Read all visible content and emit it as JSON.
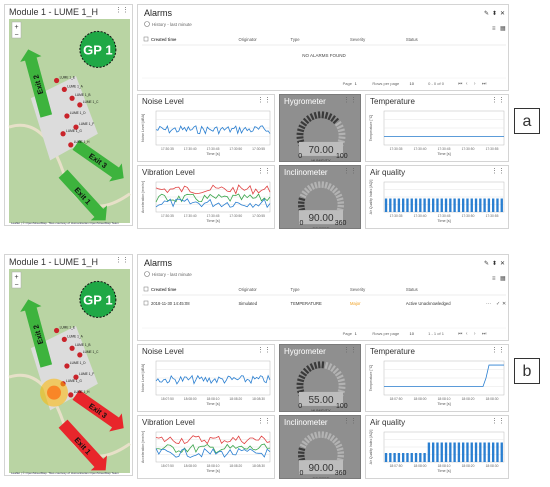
{
  "a": {
    "map": {
      "title": "Module 1 - LUME 1_H",
      "gp": "GP 1",
      "exits": [
        "Exit 2",
        "Exit 3",
        "Exit 1"
      ],
      "markers": [
        "LUME 1_E",
        "LUME 1_A",
        "LUME 1_B",
        "LUME 1_C",
        "LUME 1_D",
        "LUME 1_F",
        "LUME 1_G",
        "LUME 1_H"
      ],
      "attribution": "Leaflet | © OpenStreetMap. Tiles courtesy of Humanitarian OpenStreetMap Team",
      "zoom_in": "+",
      "zoom_out": "−",
      "exit_colors": [
        "#3db33d",
        "#3db33d",
        "#3db33d"
      ]
    },
    "alarms": {
      "title": "Alarms",
      "subtitle": "History - last minute",
      "columns": [
        "Created time",
        "Originator",
        "Type",
        "Severity",
        "Status"
      ],
      "empty": "NO ALARMS FOUND",
      "rows": [],
      "pager": {
        "page_label": "Page",
        "page": "1",
        "rows_label": "Rows per page",
        "rows": "10",
        "range": "0 - 0 of 0"
      }
    },
    "noise": {
      "title": "Noise Level",
      "ylabel": "Noise Level [dBA]",
      "xlabel": "Time [s]",
      "x_ticks": [
        "17:30:35",
        "17:30:40",
        "17:30:45",
        "17:30:50",
        "17:30:55"
      ]
    },
    "hygro": {
      "title": "Hygrometer",
      "value": "70.00",
      "unit": "HUMIDITY",
      "min": "0",
      "max": "100",
      "level": 0.7
    },
    "temp": {
      "title": "Temperature",
      "ylabel": "Temperature [°C]",
      "xlabel": "Time [s]",
      "x_ticks": [
        "17:30:35",
        "17:30:40",
        "17:30:45",
        "17:30:50",
        "17:30:55"
      ]
    },
    "vib": {
      "title": "Vibration Level",
      "ylabel": "Acceleration [mm/s²]",
      "xlabel": "Time [s]",
      "x_ticks": [
        "17:30:35",
        "17:30:40",
        "17:30:45",
        "17:30:50",
        "17:30:55"
      ]
    },
    "incl": {
      "title": "Inclinometer",
      "value": "90.00",
      "unit": "DEGREE",
      "min": "0",
      "max": "360",
      "level": 0.25
    },
    "air": {
      "title": "Air quality",
      "ylabel": "Air Quality Index [AQI]",
      "xlabel": "Time [s]",
      "x_ticks": [
        "17:30:35",
        "17:30:40",
        "17:30:45",
        "17:30:50",
        "17:30:55"
      ]
    },
    "badge": "a"
  },
  "b": {
    "map": {
      "title": "Module 1 - LUME 1_H",
      "gp": "GP 1",
      "exits": [
        "Exit 2",
        "Exit 3",
        "Exit 1"
      ],
      "markers": [
        "LUME 1_E",
        "LUME 1_A",
        "LUME 1_B",
        "LUME 1_C",
        "LUME 1_D",
        "LUME 1_F",
        "LUME 1_G",
        "LUME 1_H"
      ],
      "attribution": "Leaflet | © OpenStreetMap. Tiles courtesy of Humanitarian OpenStreetMap Team",
      "zoom_in": "+",
      "zoom_out": "−",
      "exit_colors": [
        "#3db33d",
        "#e8262b",
        "#e8262b"
      ]
    },
    "alarms": {
      "title": "Alarms",
      "subtitle": "History - last minute",
      "columns": [
        "Created time",
        "Originator",
        "Type",
        "Severity",
        "Status"
      ],
      "rows": [
        {
          "time": "2018-11-30 14:45:08",
          "originator": "Simulated",
          "type": "TEMPERATURE",
          "severity": "Major",
          "status": "Active Unacknowledged"
        }
      ],
      "pager": {
        "page_label": "Page",
        "page": "1",
        "rows_label": "Rows per page",
        "rows": "10",
        "range": "1 - 1 of 1"
      }
    },
    "noise": {
      "title": "Noise Level",
      "ylabel": "Noise Level [dBA]",
      "xlabel": "Time [s]",
      "x_ticks": [
        "18:07:50",
        "18:08:00",
        "18:08:10",
        "18:08:20",
        "18:08:30"
      ]
    },
    "hygro": {
      "title": "Hygrometer",
      "value": "55.00",
      "unit": "HUMIDITY",
      "min": "0",
      "max": "100",
      "level": 0.55
    },
    "temp": {
      "title": "Temperature",
      "ylabel": "Temperature [°C]",
      "xlabel": "Time [s]",
      "x_ticks": [
        "18:07:50",
        "18:08:00",
        "18:08:10",
        "18:08:20",
        "18:08:30"
      ]
    },
    "vib": {
      "title": "Vibration Level",
      "ylabel": "Acceleration [mm/s²]",
      "xlabel": "Time [s]",
      "x_ticks": [
        "18:07:50",
        "18:08:00",
        "18:08:10",
        "18:08:20",
        "18:08:30"
      ]
    },
    "incl": {
      "title": "Inclinometer",
      "value": "90.00",
      "unit": "DEGREE",
      "min": "0",
      "max": "360",
      "level": 0.25
    },
    "air": {
      "title": "Air quality",
      "ylabel": "Air Quality Index [AQI]",
      "xlabel": "Time [s]",
      "x_ticks": [
        "18:07:50",
        "18:08:00",
        "18:08:10",
        "18:08:20",
        "18:08:30"
      ]
    },
    "badge": "b"
  },
  "colors": {
    "accent": "#2a7fd1",
    "major": "#f0a020",
    "gauge_bg": "#8f8f8f",
    "map_green": "#b9d4a3"
  }
}
